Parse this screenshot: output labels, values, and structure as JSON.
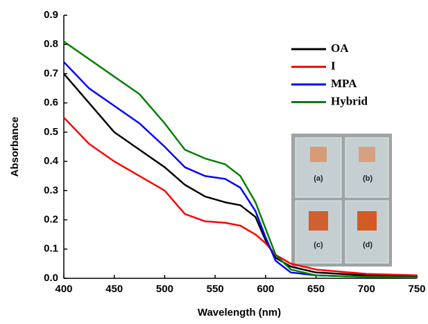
{
  "chart_data": {
    "type": "line",
    "xlabel": "Wavelength (nm)",
    "ylabel": "Absorbance",
    "x": [
      400,
      425,
      450,
      475,
      500,
      520,
      540,
      560,
      575,
      590,
      600,
      610,
      625,
      650,
      700,
      750
    ],
    "series": [
      {
        "name": "OA",
        "color": "#000000",
        "values": [
          0.7,
          0.6,
          0.5,
          0.44,
          0.38,
          0.32,
          0.28,
          0.26,
          0.25,
          0.21,
          0.13,
          0.07,
          0.04,
          0.02,
          0.01,
          0.005
        ]
      },
      {
        "name": "I",
        "color": "#ff0000",
        "values": [
          0.55,
          0.46,
          0.4,
          0.35,
          0.3,
          0.22,
          0.195,
          0.19,
          0.18,
          0.15,
          0.12,
          0.08,
          0.05,
          0.03,
          0.015,
          0.01
        ]
      },
      {
        "name": "MPA",
        "color": "#0000ff",
        "values": [
          0.74,
          0.65,
          0.59,
          0.53,
          0.45,
          0.38,
          0.35,
          0.34,
          0.31,
          0.23,
          0.14,
          0.06,
          0.02,
          0.01,
          0.005,
          0.003
        ]
      },
      {
        "name": "Hybrid",
        "color": "#008000",
        "values": [
          0.81,
          0.75,
          0.69,
          0.63,
          0.53,
          0.44,
          0.41,
          0.39,
          0.35,
          0.26,
          0.17,
          0.08,
          0.03,
          0.01,
          0.005,
          0.003
        ]
      }
    ],
    "xlim": [
      400,
      750
    ],
    "xticks": [
      400,
      450,
      500,
      550,
      600,
      650,
      700,
      750
    ],
    "ylim": [
      0,
      0.9
    ],
    "yticks": [
      {
        "value": 0,
        "label": "0.0"
      },
      0.1,
      0.2,
      0.3,
      0.4,
      0.5,
      0.6,
      0.7,
      0.8,
      0.9
    ],
    "legend": "upper right",
    "inset_labels": [
      "(a)",
      "(b)",
      "(c)",
      "(d)"
    ]
  }
}
